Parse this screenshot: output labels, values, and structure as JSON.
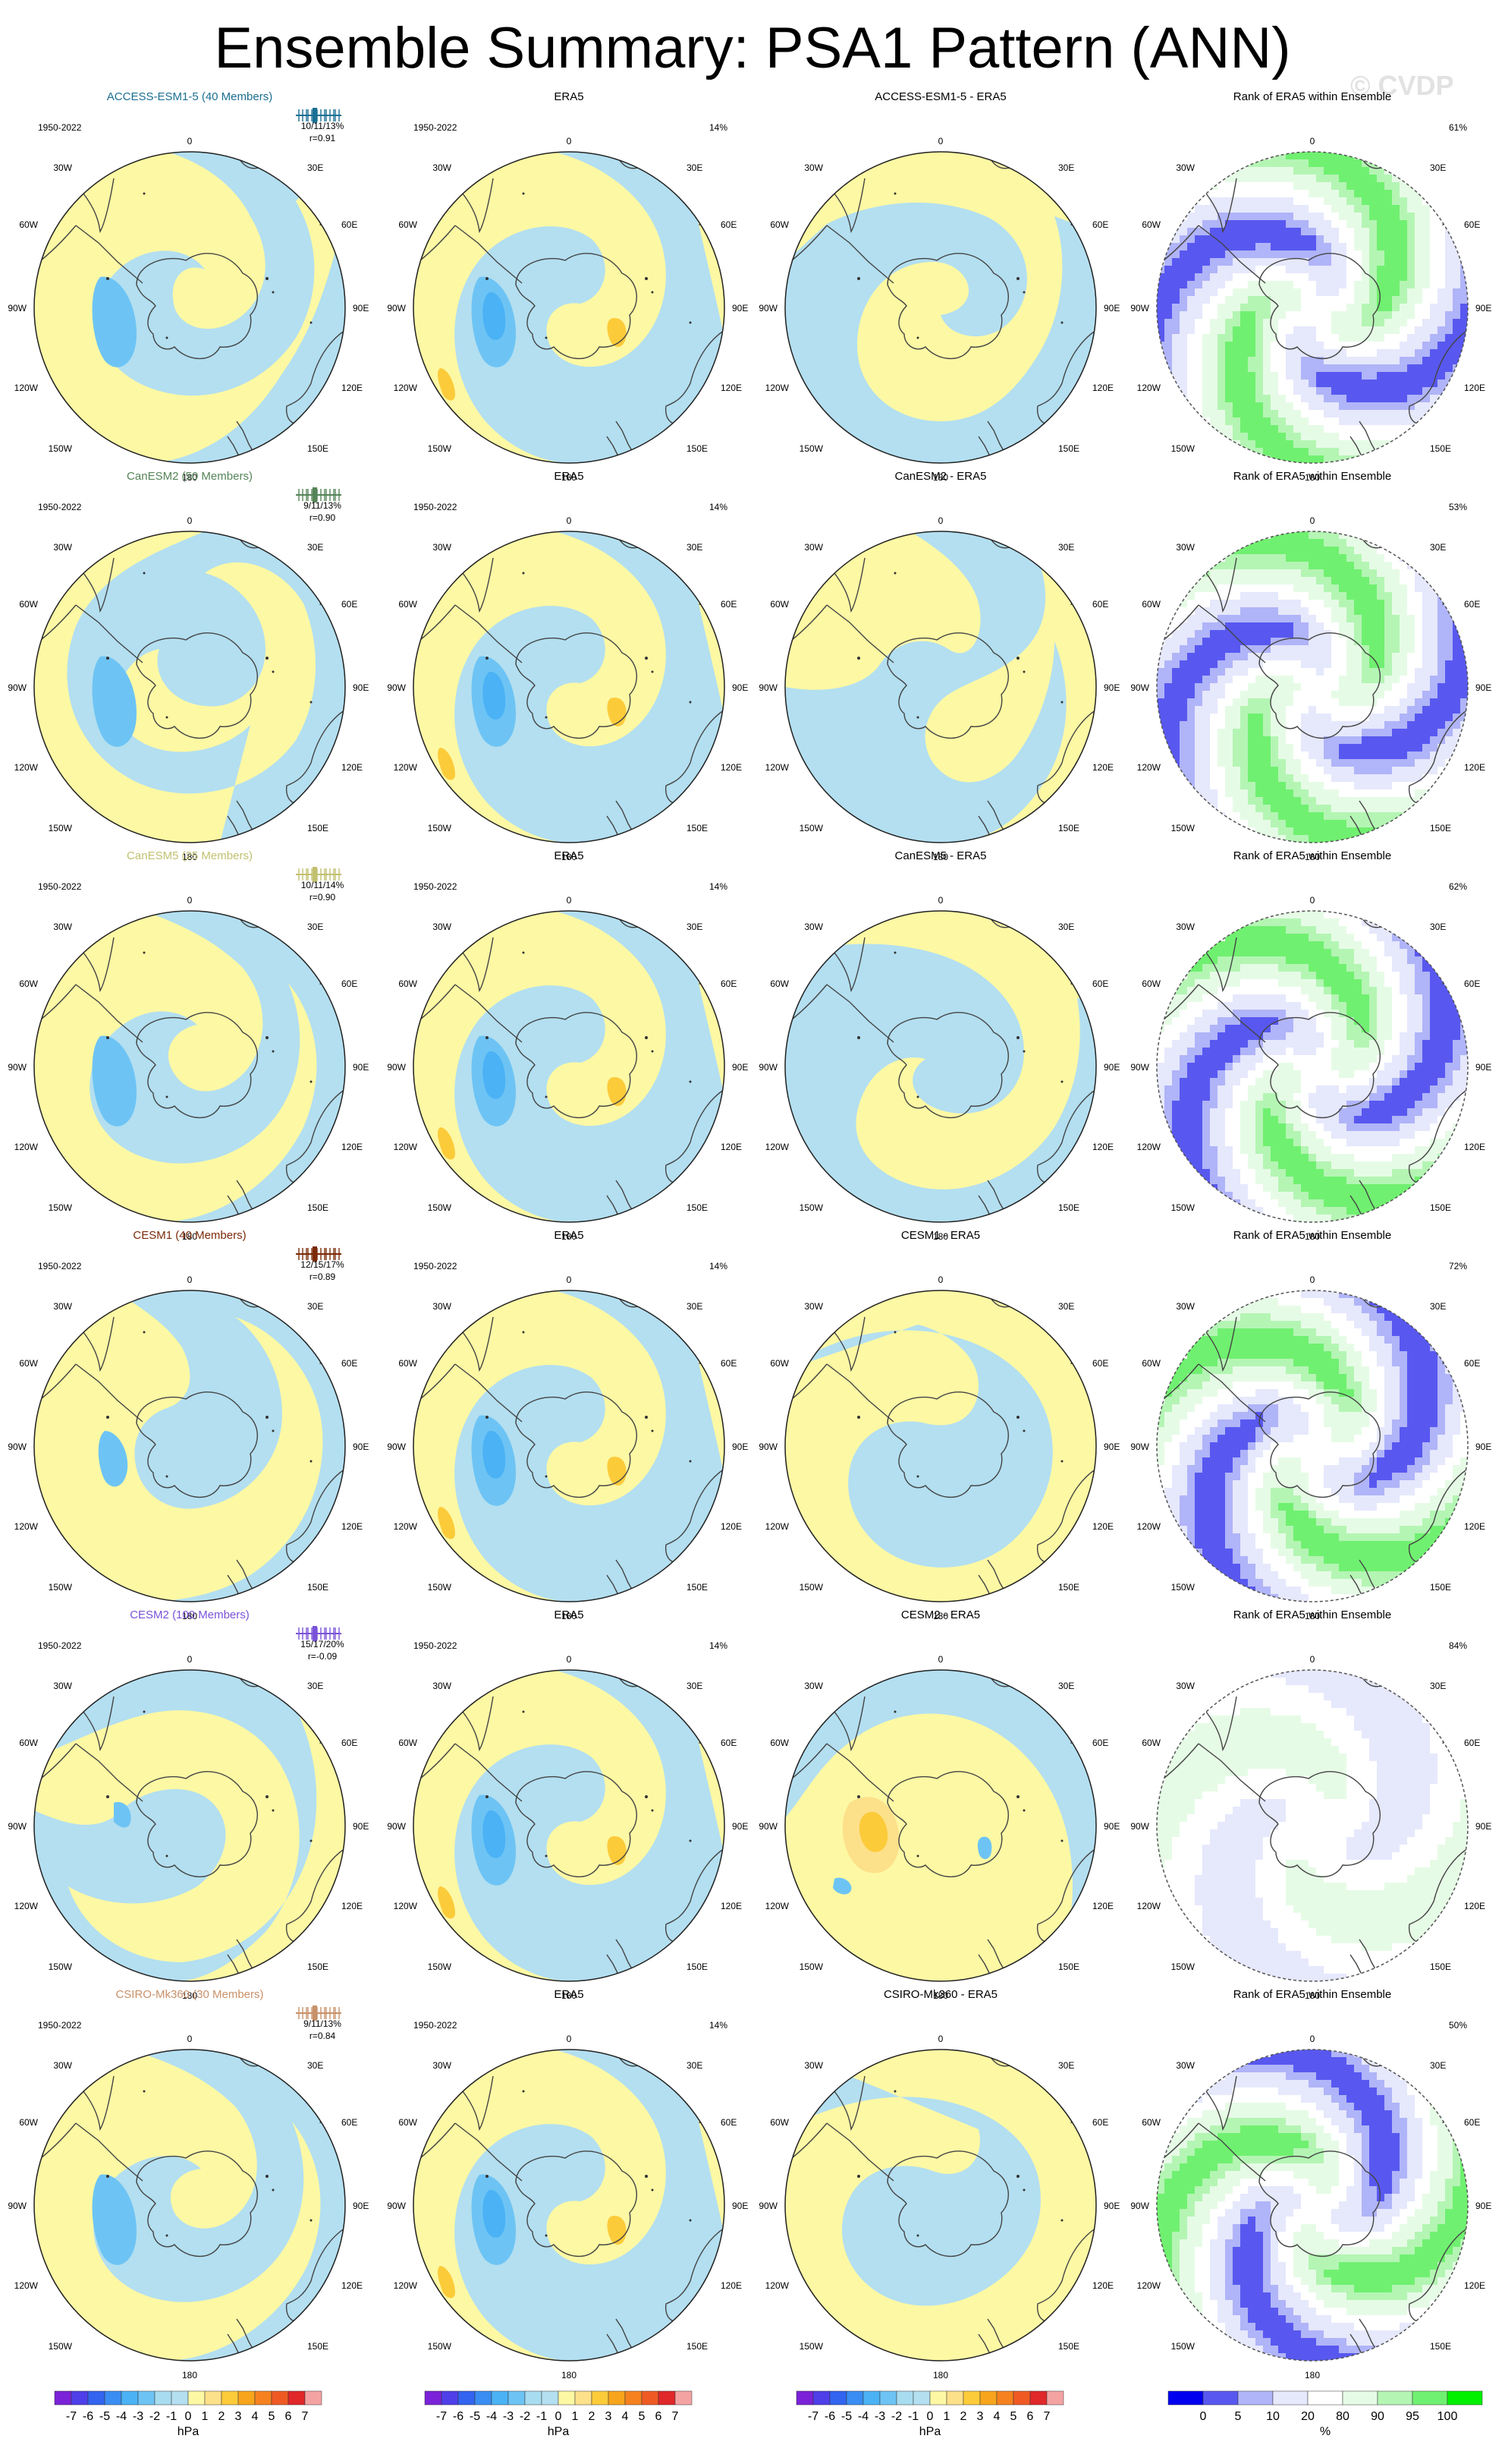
{
  "title": "Ensemble Summary: PSA1 Pattern (ANN)",
  "watermark": "© CVDP",
  "period": "1950-2022",
  "obs_name": "ERA5",
  "rank_title": "Rank of ERA5 within Ensemble",
  "lon_labels": {
    "top": "0",
    "r1": "30E",
    "r2": "60E",
    "r3": "90E",
    "r4": "120E",
    "r5": "150E",
    "bottom": "180",
    "l5": "150W",
    "l4": "120W",
    "l3": "90W",
    "l2": "60W",
    "l1": "30W"
  },
  "obs_pct": "14%",
  "colors": {
    "c_neg7": "#7b22d8",
    "c_neg6": "#4f3fe8",
    "c_neg5": "#3264f0",
    "c_neg4": "#3a8df2",
    "c_neg3": "#4bb2f5",
    "c_neg2": "#6dc4f4",
    "c_neg1": "#a8dcf0",
    "c_zero": "#b3dff0",
    "c_pos0": "#fdf8a4",
    "c_pos1": "#fde08a",
    "c_pos2": "#fccb3a",
    "c_pos3": "#f7a51c",
    "c_pos4": "#f5821f",
    "c_pos5": "#ef5a24",
    "c_pos6": "#e0282a",
    "c_pos7": "#f4a3a3",
    "r_blue": "#0000ee",
    "r_mblue": "#5858f0",
    "r_lblue": "#b0b4f8",
    "r_vlblue": "#e6e8fc",
    "r_white": "#ffffff",
    "r_vlgreen": "#e6fbe6",
    "r_lgreen": "#b4f5b4",
    "r_mgreen": "#70f070",
    "r_green": "#00f000"
  },
  "rows": [
    {
      "model": "ACCESS-ESM1-5 (40 Members)",
      "model_color": "#1a6f93",
      "stats": "10/11/13%",
      "r": "r=0.91",
      "diff_title": "ACCESS-ESM1-5 - ERA5",
      "rank_pct": "61%"
    },
    {
      "model": "CanESM2 (50 Members)",
      "model_color": "#558458",
      "stats": "9/11/13%",
      "r": "r=0.90",
      "diff_title": "CanESM2 - ERA5",
      "rank_pct": "53%"
    },
    {
      "model": "CanESM5 (25 Members)",
      "model_color": "#c2c070",
      "stats": "10/11/14%",
      "r": "r=0.90",
      "diff_title": "CanESM5 - ERA5",
      "rank_pct": "62%"
    },
    {
      "model": "CESM1 (40 Members)",
      "model_color": "#7a2a08",
      "stats": "12/15/17%",
      "r": "r=0.89",
      "diff_title": "CESM1 - ERA5",
      "rank_pct": "72%"
    },
    {
      "model": "CESM2 (100 Members)",
      "model_color": "#7a52d8",
      "stats": "15/17/20%",
      "r": "r=-0.09",
      "diff_title": "CESM2 - ERA5",
      "rank_pct": "84%"
    },
    {
      "model": "CSIRO-Mk360 (30 Members)",
      "model_color": "#c8916a",
      "stats": "9/11/13%",
      "r": "r=0.84",
      "diff_title": "CSIRO-Mk360 - ERA5",
      "rank_pct": "50%"
    }
  ],
  "hpa_ticks": [
    "-7",
    "-6",
    "-5",
    "-4",
    "-3",
    "-2",
    "-1",
    "0",
    "1",
    "2",
    "3",
    "4",
    "5",
    "6",
    "7"
  ],
  "hpa_units": "hPa",
  "rank_ticks": [
    "0",
    "5",
    "10",
    "20",
    "80",
    "90",
    "95",
    "100"
  ],
  "rank_units": "%"
}
